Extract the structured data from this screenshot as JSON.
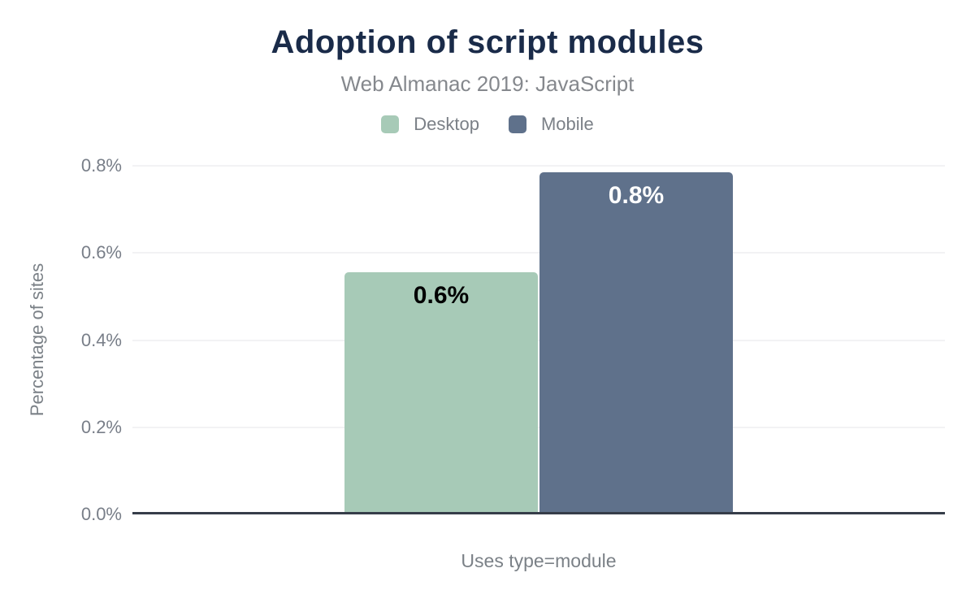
{
  "header": {
    "title": "Adoption of script modules",
    "subtitle": "Web Almanac 2019: JavaScript"
  },
  "legend": {
    "items": [
      {
        "label": "Desktop",
        "color": "#a7cab7"
      },
      {
        "label": "Mobile",
        "color": "#5f718b"
      }
    ]
  },
  "chart_data": {
    "type": "bar",
    "title": "Adoption of script modules",
    "subtitle": "Web Almanac 2019: JavaScript",
    "categories": [
      "Uses type=module"
    ],
    "series": [
      {
        "name": "Desktop",
        "value": 0.55,
        "data_label": "0.6%",
        "color": "#a7cab7",
        "label_color": "#000000"
      },
      {
        "name": "Mobile",
        "value": 0.78,
        "data_label": "0.8%",
        "color": "#5f718b",
        "label_color": "#ffffff"
      }
    ],
    "xlabel": "Uses type=module",
    "ylabel": "Percentage of sites",
    "ylim": [
      0,
      0.8
    ],
    "y_ticks": [
      "0.8%",
      "0.6%",
      "0.4%",
      "0.2%",
      "0.0%"
    ],
    "y_tick_values": [
      0.8,
      0.6,
      0.4,
      0.2,
      0.0
    ],
    "grid": "horizontal",
    "legend_position": "top",
    "colors": {
      "title": "#1a2b49",
      "subtitle": "#85888d",
      "axis_text": "#787e88",
      "gridline": "#f2f2f4",
      "baseline": "#363d49",
      "background": "#ffffff"
    }
  }
}
